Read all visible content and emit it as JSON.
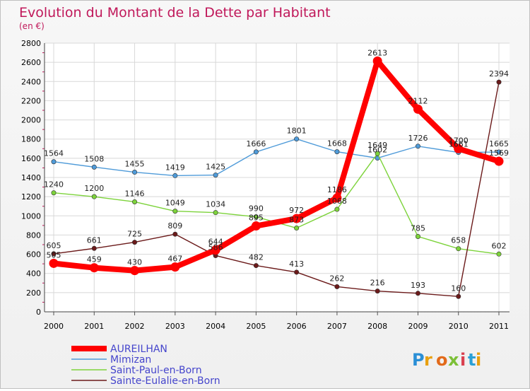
{
  "chart_data": {
    "type": "line",
    "title": "Evolution du Montant de la Dette par Habitant",
    "subtitle": "(en €)",
    "x": [
      "2000",
      "2001",
      "2002",
      "2003",
      "2004",
      "2005",
      "2006",
      "2007",
      "2008",
      "2009",
      "2010",
      "2011"
    ],
    "ylim": [
      0,
      2800
    ],
    "yticks": [
      0,
      200,
      400,
      600,
      800,
      1000,
      1200,
      1400,
      1600,
      1800,
      2000,
      2200,
      2400,
      2600,
      2800
    ],
    "grid": true,
    "legend_position": "bottom-left",
    "series": [
      {
        "name": "AUREILHAN",
        "color": "#ff0000",
        "values": [
          505,
          459,
          430,
          467,
          644,
          895,
          972,
          1186,
          2613,
          2112,
          1700,
          1569
        ]
      },
      {
        "name": "Mimizan",
        "color": "#4f9bd9",
        "values": [
          1564,
          1508,
          1455,
          1419,
          1425,
          1666,
          1801,
          1668,
          1602,
          1726,
          1661,
          1665
        ]
      },
      {
        "name": "Saint-Paul-en-Born",
        "color": "#7dd33b",
        "values": [
          1240,
          1200,
          1146,
          1049,
          1034,
          990,
          873,
          1068,
          1649,
          785,
          658,
          602
        ]
      },
      {
        "name": "Sainte-Eulalie-en-Born",
        "color": "#6b1a1a",
        "values": [
          605,
          661,
          725,
          809,
          586,
          482,
          413,
          262,
          216,
          193,
          160,
          2394
        ]
      }
    ]
  },
  "logo_text": "Proxiti",
  "colors": {
    "title": "#c0185a",
    "axis_text": "#000000",
    "grid": "#d8d8d8",
    "legend_text": "#4545cc"
  }
}
